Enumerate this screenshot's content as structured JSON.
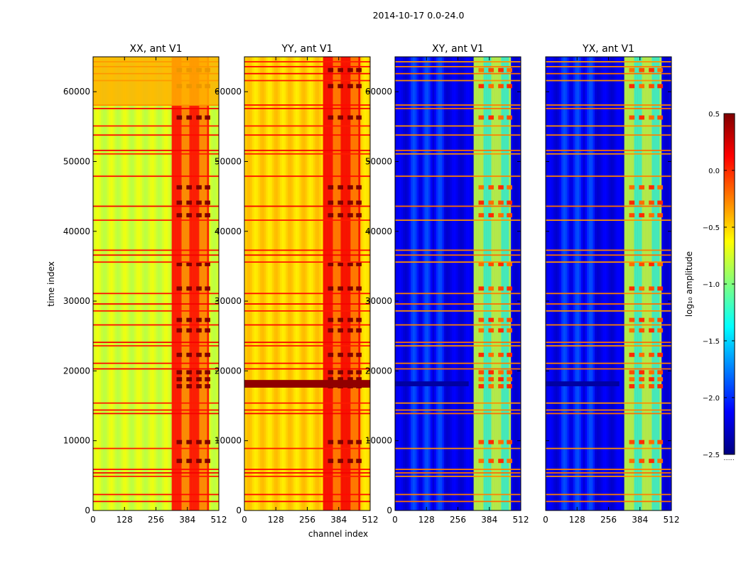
{
  "figure": {
    "suptitle": "2014-10-17 0.0-24.0",
    "xlabel": "channel index",
    "ylabel": "time index"
  },
  "colormap": {
    "name": "jet",
    "stops": [
      "#00007f",
      "#0000ff",
      "#007fff",
      "#00ffff",
      "#7fff7f",
      "#ffff00",
      "#ff7f00",
      "#ff0000",
      "#7f0000"
    ]
  },
  "colorbar": {
    "label": "log₁₀ amplitude",
    "range": [
      -2.5,
      0.5
    ],
    "ticks": [
      0.5,
      0.0,
      -0.5,
      -1.0,
      -1.5,
      -2.0,
      -2.5
    ],
    "tick_labels": [
      "0.5",
      "0.0",
      "−0.5",
      "−1.0",
      "−1.5",
      "−2.0",
      "−2.5"
    ],
    "footer": "......"
  },
  "chart_data": [
    {
      "type": "heatmap",
      "title": "XX, ant V1",
      "xlim": [
        0,
        512
      ],
      "ylim": [
        0,
        65000
      ],
      "xticks": [
        0,
        128,
        256,
        384,
        512
      ],
      "yticks": [
        0,
        10000,
        20000,
        30000,
        40000,
        50000,
        60000
      ],
      "ytick_labels_visible": true,
      "base_level": -0.75,
      "band_level": 0.1
    },
    {
      "type": "heatmap",
      "title": "YY, ant V1",
      "xlim": [
        0,
        512
      ],
      "ylim": [
        0,
        65000
      ],
      "xticks": [
        0,
        128,
        256,
        384,
        512
      ],
      "yticks": [
        0,
        10000,
        20000,
        30000,
        40000,
        50000,
        60000
      ],
      "ytick_labels_visible": true,
      "base_level": -0.5,
      "band_level": 0.15
    },
    {
      "type": "heatmap",
      "title": "XY, ant V1",
      "xlim": [
        0,
        512
      ],
      "ylim": [
        0,
        65000
      ],
      "xticks": [
        0,
        128,
        256,
        384,
        512
      ],
      "yticks": [
        0,
        10000,
        20000,
        30000,
        40000,
        50000,
        60000
      ],
      "ytick_labels_visible": true,
      "base_level": -2.2,
      "band_level": -0.8
    },
    {
      "type": "heatmap",
      "title": "YX, ant V1",
      "xlim": [
        0,
        512
      ],
      "ylim": [
        0,
        65000
      ],
      "xticks": [
        0,
        128,
        256,
        384,
        512
      ],
      "yticks": [
        0,
        10000,
        20000,
        30000,
        40000,
        50000,
        60000
      ],
      "ytick_labels_visible": false,
      "base_level": -2.2,
      "band_level": -0.8
    }
  ],
  "flagged_rows": [
    1200,
    2200,
    4800,
    5300,
    5800,
    8800,
    13800,
    14300,
    15300,
    20200,
    21000,
    23500,
    24000,
    26500,
    28500,
    29500,
    31000,
    35500,
    36500,
    37200,
    41500,
    43500,
    47800,
    51000,
    51500,
    53700,
    55000,
    57500,
    58000,
    61500,
    62500,
    63500,
    64200
  ]
}
